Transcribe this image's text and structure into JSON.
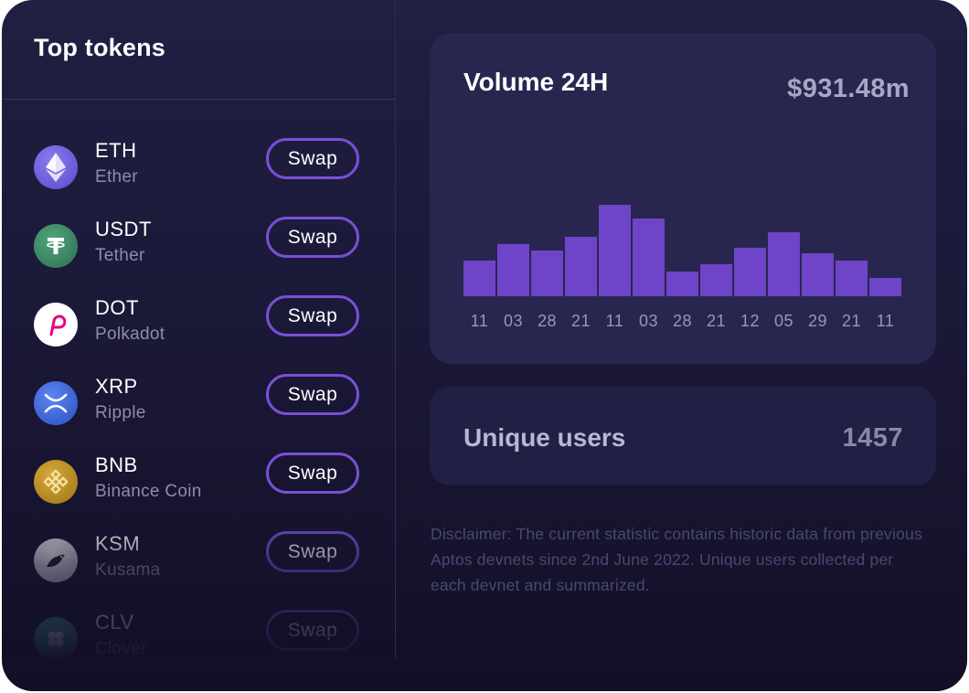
{
  "left_panel": {
    "title": "Top tokens",
    "tokens": [
      {
        "symbol": "ETH",
        "name": "Ether",
        "icon": "ethereum-icon",
        "icon_color": "#6b5fd8",
        "swap_label": "Swap"
      },
      {
        "symbol": "USDT",
        "name": "Tether",
        "icon": "tether-icon",
        "icon_color": "#3e8a66",
        "swap_label": "Swap"
      },
      {
        "symbol": "DOT",
        "name": "Polkadot",
        "icon": "polkadot-icon",
        "icon_color": "#ffffff",
        "swap_label": "Swap"
      },
      {
        "symbol": "XRP",
        "name": "Ripple",
        "icon": "ripple-icon",
        "icon_color": "#3b63d8",
        "swap_label": "Swap"
      },
      {
        "symbol": "BNB",
        "name": "Binance Coin",
        "icon": "binance-icon",
        "icon_color": "#c99a27",
        "swap_label": "Swap"
      },
      {
        "symbol": "KSM",
        "name": "Kusama",
        "icon": "kusama-icon",
        "icon_color": "#d9d9e2",
        "swap_label": "Swap"
      },
      {
        "symbol": "CLV",
        "name": "Clover",
        "icon": "clover-icon",
        "icon_color": "#3a9a8a",
        "swap_label": "Swap"
      }
    ]
  },
  "volume_card": {
    "title": "Volume 24H",
    "value": "$931.48m"
  },
  "chart_data": {
    "type": "bar",
    "categories": [
      "11",
      "03",
      "28",
      "21",
      "11",
      "03",
      "28",
      "21",
      "12",
      "05",
      "29",
      "21",
      "11"
    ],
    "values": [
      39,
      57,
      50,
      65,
      100,
      85,
      27,
      35,
      53,
      70,
      47,
      39,
      20
    ],
    "bar_color": "#6e44c8",
    "grid": false
  },
  "users_card": {
    "label": "Unique users",
    "value": "1457"
  },
  "disclaimer": "Disclaimer: The current statistic contains historic data from previous Aptos devnets since 2nd June 2022. Unique users collected per each devnet and summarized."
}
